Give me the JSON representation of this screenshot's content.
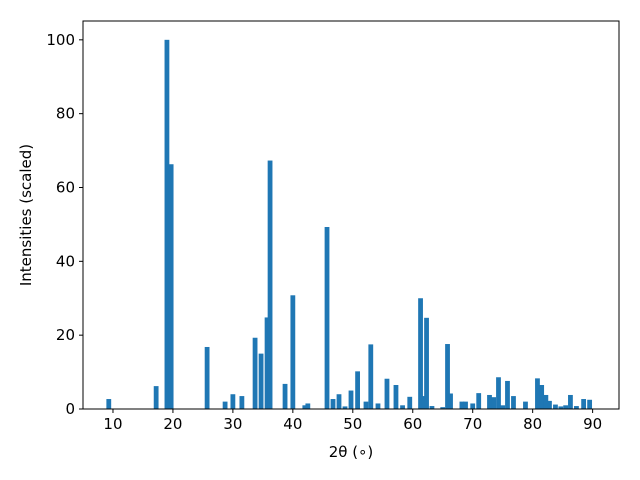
{
  "chart_data": {
    "type": "bar",
    "x_label": "2θ (∘)",
    "y_label": "Intensities (scaled)",
    "x": [
      9.3,
      17.2,
      19.0,
      19.7,
      25.7,
      28.7,
      30.0,
      31.5,
      33.7,
      34.7,
      35.7,
      36.2,
      38.7,
      40.0,
      42.0,
      42.5,
      45.7,
      46.7,
      47.7,
      48.7,
      49.7,
      50.8,
      52.2,
      53.0,
      54.2,
      55.7,
      57.2,
      58.3,
      59.5,
      61.3,
      61.8,
      62.3,
      63.2,
      65.0,
      65.8,
      66.3,
      68.2,
      68.8,
      70.0,
      71.0,
      72.8,
      73.5,
      74.3,
      75.0,
      75.8,
      76.8,
      78.8,
      80.8,
      81.5,
      82.2,
      82.8,
      83.8,
      84.7,
      85.5,
      86.3,
      87.3,
      88.5,
      89.5
    ],
    "values": [
      2.7,
      6.2,
      100,
      66.3,
      16.8,
      2,
      4,
      3.5,
      19.3,
      15,
      24.8,
      67.3,
      6.8,
      30.8,
      1,
      1.5,
      49.3,
      2.7,
      4,
      0.7,
      5,
      10.2,
      2,
      17.5,
      1.5,
      8.2,
      6.5,
      1,
      3.3,
      30,
      3.5,
      24.7,
      0.8,
      0.5,
      17.6,
      4.2,
      2,
      2,
      1.5,
      4.3,
      3.8,
      3.2,
      8.6,
      1,
      7.6,
      3.5,
      2,
      8.3,
      6.5,
      3.8,
      2.2,
      1.2,
      0.7,
      1,
      3.8,
      0.8,
      2.7,
      2.5
    ],
    "color": "#1f77b4",
    "xlim": [
      5,
      94.4
    ],
    "ylim": [
      0,
      105.1
    ],
    "xticks": [
      10,
      20,
      30,
      40,
      50,
      60,
      70,
      80,
      90
    ],
    "yticks": [
      0,
      20,
      40,
      60,
      80,
      100
    ]
  }
}
